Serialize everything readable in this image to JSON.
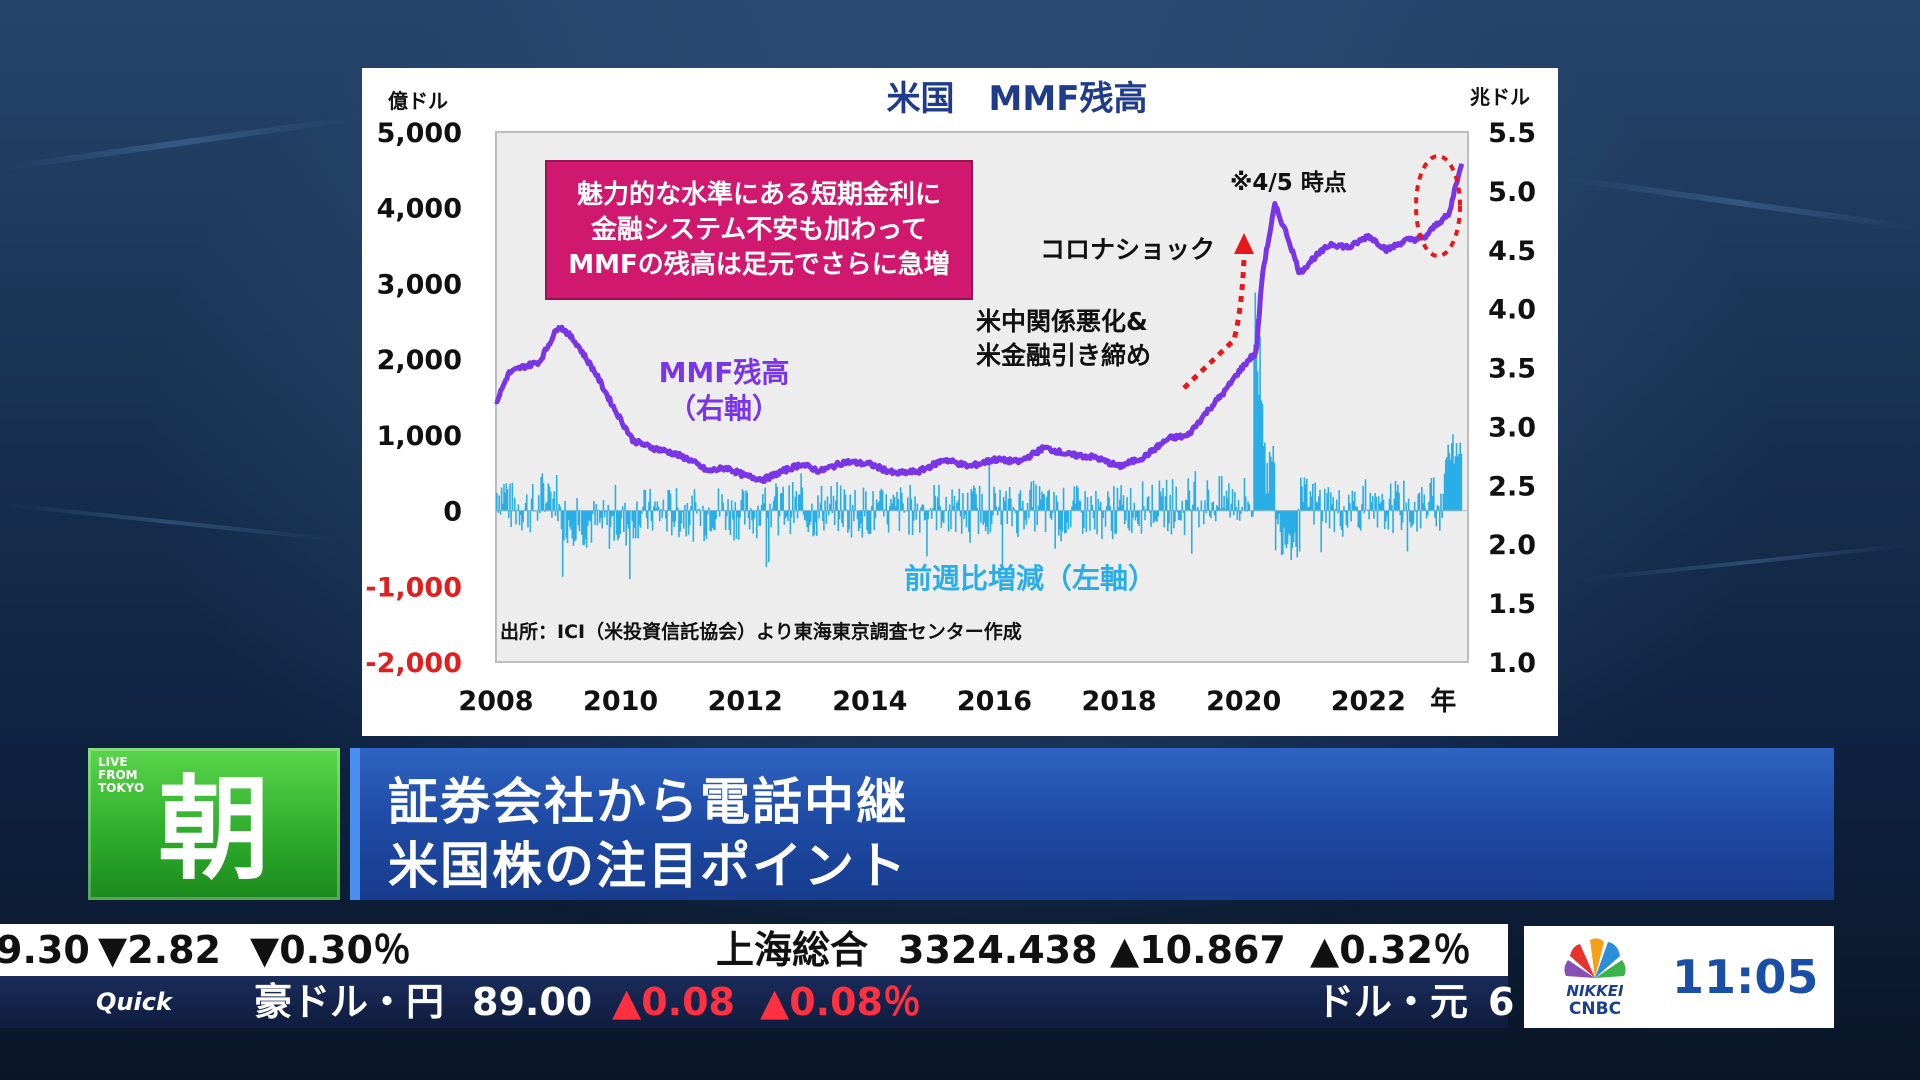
{
  "chart_data": {
    "type": "line+bar",
    "title": "米国　MMF残高",
    "left_axis_unit": "億ドル",
    "right_axis_unit": "兆ドル",
    "x_unit": "年",
    "left_ticks": [
      "5,000",
      "4,000",
      "3,000",
      "2,000",
      "1,000",
      "0",
      "-1,000",
      "-2,000"
    ],
    "left_tick_values": [
      5000,
      4000,
      3000,
      2000,
      1000,
      0,
      -1000,
      -2000
    ],
    "right_ticks": [
      "5.5",
      "5.0",
      "4.5",
      "4.0",
      "3.5",
      "3.0",
      "2.5",
      "2.0",
      "1.5",
      "1.0"
    ],
    "right_tick_values": [
      5.5,
      5.0,
      4.5,
      4.0,
      3.5,
      3.0,
      2.5,
      2.0,
      1.5,
      1.0
    ],
    "x_ticks": [
      "2008",
      "2010",
      "2012",
      "2014",
      "2016",
      "2018",
      "2020",
      "2022"
    ],
    "x_tick_values": [
      2008,
      2010,
      2012,
      2014,
      2016,
      2018,
      2020,
      2022
    ],
    "xlim": [
      2008,
      2023.6
    ],
    "ylim_left": [
      -2000,
      5000
    ],
    "ylim_right": [
      1.0,
      5.5
    ],
    "series": [
      {
        "name": "MMF残高（右軸）",
        "axis": "right",
        "kind": "line",
        "color": "#7a35e6",
        "x": [
          2008.0,
          2008.2,
          2008.4,
          2008.7,
          2009.0,
          2009.1,
          2009.3,
          2009.6,
          2009.9,
          2010.2,
          2010.5,
          2010.8,
          2011.1,
          2011.4,
          2011.7,
          2012.0,
          2012.3,
          2012.6,
          2012.9,
          2013.2,
          2013.6,
          2014.0,
          2014.4,
          2014.8,
          2015.2,
          2015.6,
          2016.0,
          2016.4,
          2016.8,
          2017.2,
          2017.6,
          2018.0,
          2018.4,
          2018.8,
          2019.1,
          2019.4,
          2019.7,
          2019.9,
          2020.1,
          2020.2,
          2020.3,
          2020.5,
          2020.7,
          2020.9,
          2021.1,
          2021.4,
          2021.7,
          2022.0,
          2022.3,
          2022.6,
          2022.9,
          2023.1,
          2023.3,
          2023.4,
          2023.5
        ],
        "values": [
          3.2,
          3.45,
          3.5,
          3.55,
          3.85,
          3.82,
          3.7,
          3.45,
          3.15,
          2.88,
          2.82,
          2.78,
          2.72,
          2.62,
          2.65,
          2.58,
          2.55,
          2.62,
          2.68,
          2.62,
          2.7,
          2.68,
          2.6,
          2.62,
          2.72,
          2.66,
          2.72,
          2.7,
          2.82,
          2.76,
          2.74,
          2.66,
          2.74,
          2.9,
          2.92,
          3.12,
          3.3,
          3.45,
          3.58,
          3.62,
          4.3,
          4.88,
          4.62,
          4.3,
          4.42,
          4.55,
          4.52,
          4.62,
          4.5,
          4.58,
          4.6,
          4.72,
          4.8,
          5.05,
          5.22
        ]
      },
      {
        "name": "前週比増減（左軸）",
        "axis": "left",
        "kind": "bar",
        "color": "#2aaee8"
      }
    ],
    "annotations": [
      {
        "text": "魅力的な水準にある短期金利に\n金融システム不安も加わって\nMMFの残高は足元でさらに急増",
        "style": "box"
      },
      {
        "text": "※4/5 時点"
      },
      {
        "text": "コロナショック"
      },
      {
        "text": "米中関係悪化&\n米金融引き締め"
      },
      {
        "text": "MMF残高\n（右軸）"
      },
      {
        "text": "前週比増減（左軸）"
      },
      {
        "text": "出所：ICI（米投資信託協会）より東海東京調査センター作成"
      }
    ],
    "grid": false,
    "plot_background": "#ededed"
  },
  "lower_third": {
    "badge_tag": "LIVE\nFROM\nTOKYO",
    "badge_kanji": "朝",
    "title_line1": "証券会社から電話中継",
    "title_line2": "米国株の注目ポイント"
  },
  "ticker": {
    "top": {
      "prev_value": "9.30",
      "prev_change": "▼2.82",
      "prev_pct": "▼0.30％",
      "name": "上海総合",
      "value": "3324.438",
      "change": "▲10.867",
      "pct": "▲0.32％"
    },
    "bottom": {
      "logo": "Quick",
      "name": "豪ドル・円",
      "value": "89.00",
      "change": "▲0.08",
      "pct": "▲0.08％",
      "next_name": "ドル・元",
      "next_value_partial": "6"
    }
  },
  "clock": {
    "logo_text_1": "NIKKEI",
    "logo_text_2": "CNBC",
    "time": "11:05"
  }
}
